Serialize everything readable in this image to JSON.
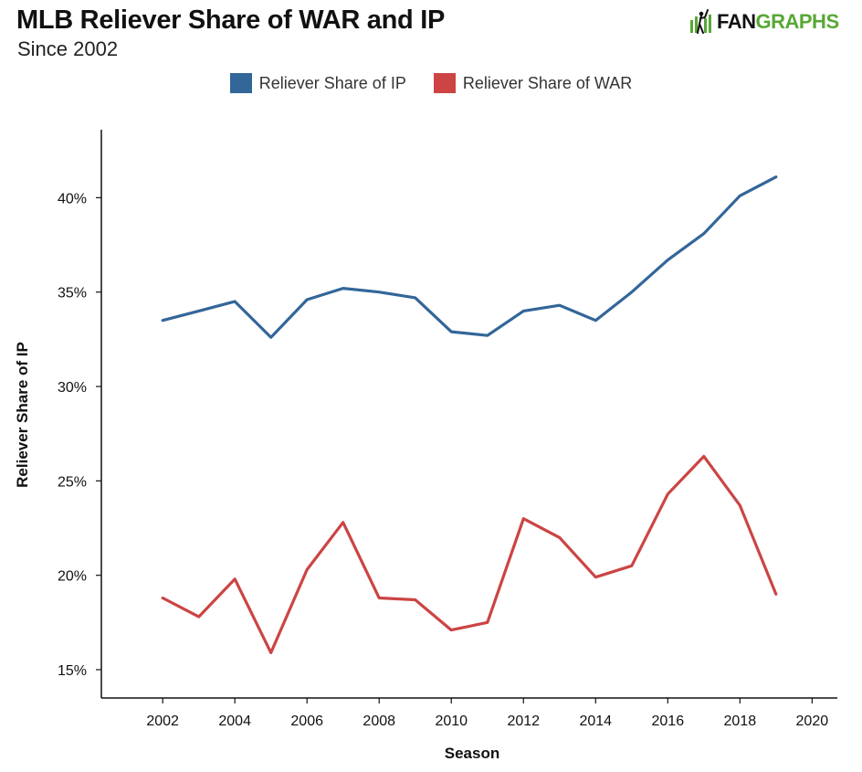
{
  "header": {
    "title": "MLB Reliever Share of WAR and IP",
    "subtitle": "Since 2002"
  },
  "logo": {
    "text_fan": "FAN",
    "text_graphs": "GRAPHS",
    "icon": "fangraphs-batter-icon",
    "color_green": "#58a836"
  },
  "chart_data": {
    "type": "line",
    "xlabel": "Season",
    "ylabel": "Reliever Share of IP",
    "xlim": [
      2000.3,
      2020.7
    ],
    "ylim": [
      13.5,
      43.6
    ],
    "xticks": [
      2002,
      2004,
      2006,
      2008,
      2010,
      2012,
      2014,
      2016,
      2018,
      2020
    ],
    "yticks": [
      15,
      20,
      25,
      30,
      35,
      40
    ],
    "y_format": "%",
    "grid": false,
    "legend_position": "top-center",
    "series": [
      {
        "name": "Reliever Share of IP",
        "color": "#336699",
        "x": [
          2002,
          2003,
          2004,
          2005,
          2006,
          2007,
          2008,
          2009,
          2010,
          2011,
          2012,
          2013,
          2014,
          2015,
          2016,
          2017,
          2018,
          2019
        ],
        "y": [
          33.5,
          34.0,
          34.5,
          32.6,
          34.6,
          35.2,
          35.0,
          34.7,
          32.9,
          32.7,
          34.0,
          34.3,
          33.5,
          35.0,
          36.7,
          38.1,
          40.1,
          41.1
        ]
      },
      {
        "name": "Reliever Share of WAR",
        "color": "#cc4444",
        "x": [
          2002,
          2003,
          2004,
          2005,
          2006,
          2007,
          2008,
          2009,
          2010,
          2011,
          2012,
          2013,
          2014,
          2015,
          2016,
          2017,
          2018,
          2019
        ],
        "y": [
          18.8,
          17.8,
          19.8,
          15.9,
          20.3,
          22.8,
          18.8,
          18.7,
          17.1,
          17.5,
          23.0,
          22.0,
          19.9,
          20.5,
          24.3,
          26.3,
          23.7,
          19.0
        ]
      }
    ]
  }
}
